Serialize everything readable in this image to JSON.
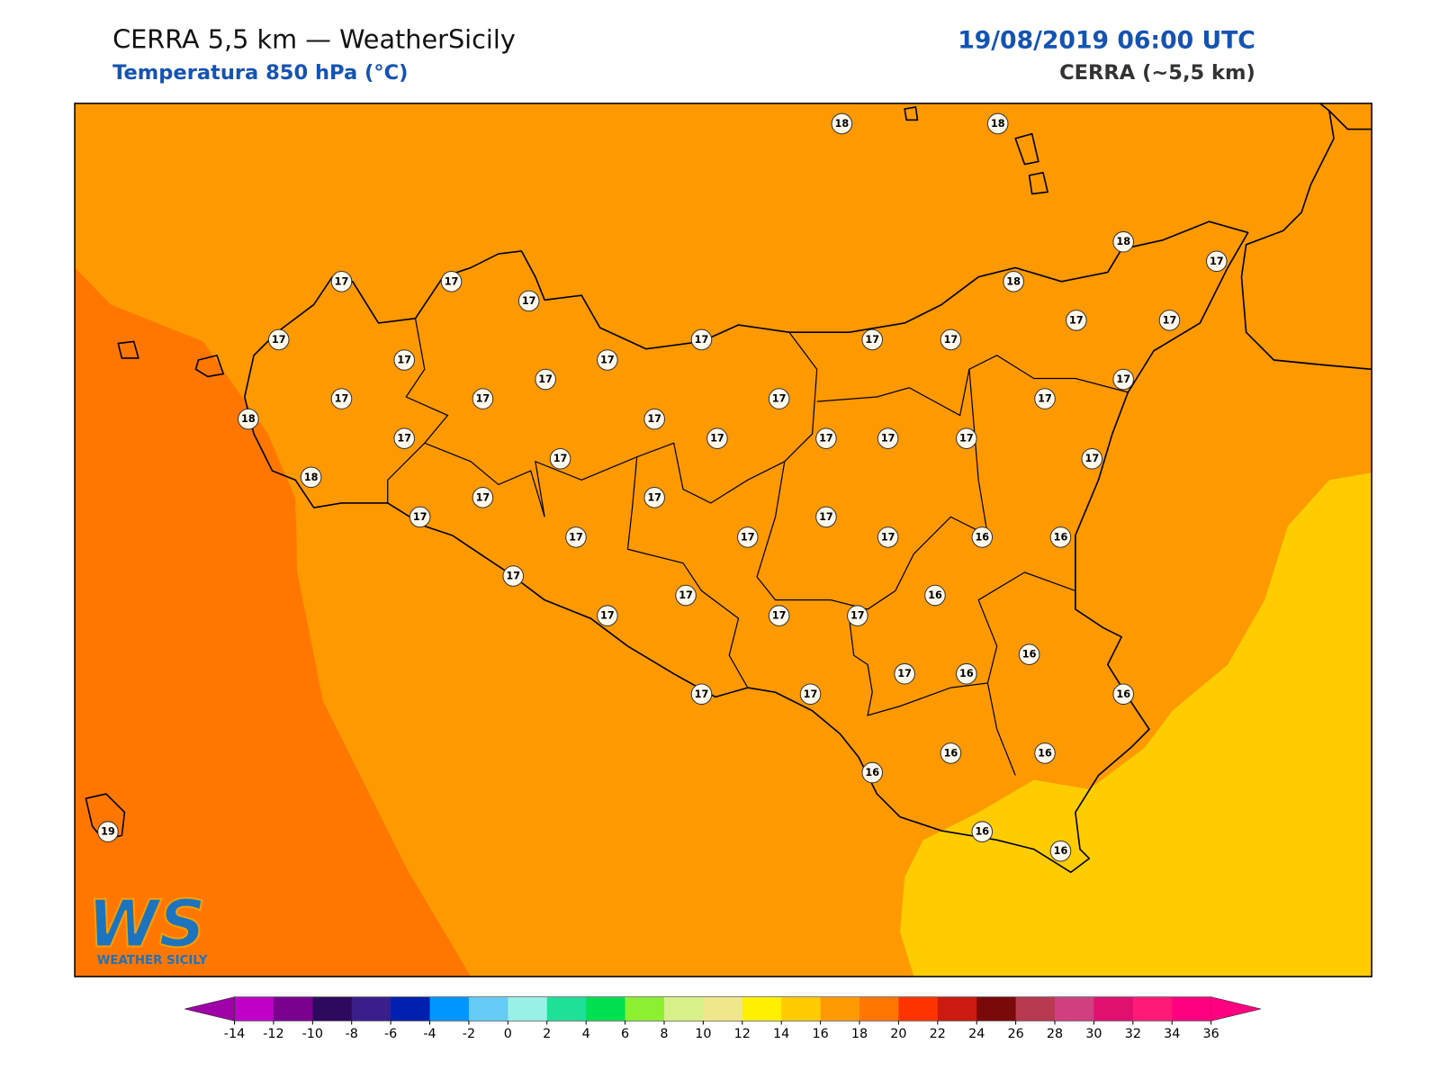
{
  "header": {
    "title": "CERRA 5,5 km — WeatherSicily",
    "subtitle": "Temperatura 850 hPa (°C)",
    "datetime": "19/08/2019 06:00 UTC",
    "model": "CERRA (~5,5 km)"
  },
  "stations": [
    18,
    18,
    18,
    17,
    17,
    17,
    17,
    18,
    17,
    17,
    17,
    17,
    17,
    17,
    17,
    17,
    17,
    17,
    17,
    17,
    17,
    17,
    18,
    17,
    17,
    17,
    17,
    17,
    17,
    17,
    17,
    18,
    17,
    17,
    17,
    17,
    17,
    17,
    17,
    16,
    16,
    17,
    17,
    16,
    17,
    17,
    17,
    16,
    17,
    16,
    17,
    17,
    16,
    16,
    16,
    16,
    16,
    16,
    19
  ],
  "logo": {
    "mark": "WS",
    "name": "WEATHER SICILY"
  },
  "colorbar": {
    "ticks": [
      -14,
      -12,
      -10,
      -8,
      -6,
      -4,
      -2,
      0,
      2,
      4,
      6,
      8,
      10,
      12,
      14,
      16,
      18,
      20,
      22,
      24,
      26,
      28,
      30,
      32,
      34,
      36
    ],
    "colors": [
      "#c000c8",
      "#7a0090",
      "#2e0a5e",
      "#3a1f8a",
      "#0020b0",
      "#0096ff",
      "#66ccf5",
      "#99f0e6",
      "#1ee096",
      "#00e050",
      "#8cf030",
      "#d8f08a",
      "#f0e68c",
      "#fff000",
      "#ffcc00",
      "#ff9900",
      "#ff7700",
      "#ff3300",
      "#cc1a10",
      "#7a0a0a",
      "#b83a50",
      "#d04080",
      "#e01070",
      "#ff1a78",
      "#ff0080"
    ],
    "under": "#a000a8",
    "over": "#ff0080"
  }
}
